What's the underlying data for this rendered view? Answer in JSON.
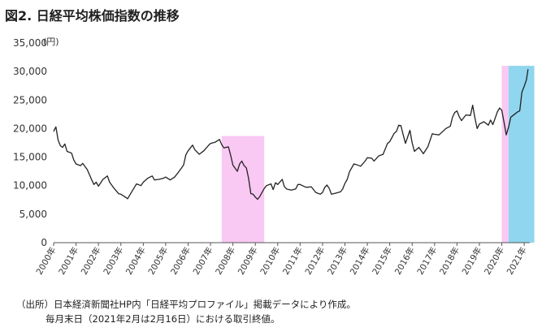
{
  "header": {
    "title": "図2. 日経平均株価指数の推移",
    "unit": "(円)"
  },
  "footer": {
    "line1": "（出所）日本経済新聞社HP内「日経平均プロファイル」掲載データにより作成。",
    "line2": "毎月末日（2021年2月は2月16日）における取引終値。"
  },
  "colors": {
    "line": "#222222",
    "shade_pink": "#f9c8f3",
    "shade_blue": "#8fd6ee",
    "axis": "#555555"
  },
  "chart_data": {
    "type": "line",
    "title": "図2. 日経平均株価指数の推移",
    "ylabel": "(円)",
    "xlabel": "",
    "ylim": [
      0,
      35000
    ],
    "xlim": [
      2000.0,
      2021.25
    ],
    "y_ticks": [
      0,
      5000,
      10000,
      15000,
      20000,
      25000,
      30000,
      35000
    ],
    "y_tick_labels": [
      "0",
      "5,000",
      "10,000",
      "15,000",
      "20,000",
      "25,000",
      "30,000",
      "35,000"
    ],
    "x_tick_labels": [
      "2000年",
      "2001年",
      "2002年",
      "2003年",
      "2004年",
      "2005年",
      "2006年",
      "2007年",
      "2008年",
      "2009年",
      "2010年",
      "2011年",
      "2012年",
      "2013年",
      "2014年",
      "2015年",
      "2016年",
      "2017年",
      "2018年",
      "2019年",
      "2020年",
      "2021年"
    ],
    "grid": false,
    "shaded_periods": [
      {
        "from": 2007.5,
        "to": 2009.4,
        "top": 18700,
        "color": "pink"
      },
      {
        "from": 2020.0,
        "to": 2020.3,
        "top": 31000,
        "color": "pink"
      },
      {
        "from": 2020.3,
        "to": 2021.45,
        "top": 31000,
        "color": "blue"
      }
    ],
    "series": [
      {
        "values": [
          [
            2000.0,
            19500
          ],
          [
            2000.1,
            20300
          ],
          [
            2000.2,
            18000
          ],
          [
            2000.3,
            17000
          ],
          [
            2000.4,
            16700
          ],
          [
            2000.5,
            17300
          ],
          [
            2000.6,
            16000
          ],
          [
            2000.8,
            15700
          ],
          [
            2000.9,
            14500
          ],
          [
            2001.0,
            13800
          ],
          [
            2001.2,
            13500
          ],
          [
            2001.3,
            13900
          ],
          [
            2001.5,
            12800
          ],
          [
            2001.7,
            11000
          ],
          [
            2001.8,
            10200
          ],
          [
            2001.9,
            10600
          ],
          [
            2002.0,
            9900
          ],
          [
            2002.2,
            11100
          ],
          [
            2002.4,
            11700
          ],
          [
            2002.5,
            10600
          ],
          [
            2002.7,
            9500
          ],
          [
            2002.9,
            8600
          ],
          [
            2003.0,
            8500
          ],
          [
            2003.2,
            8000
          ],
          [
            2003.3,
            7700
          ],
          [
            2003.5,
            9000
          ],
          [
            2003.7,
            10300
          ],
          [
            2003.9,
            10000
          ],
          [
            2004.0,
            10600
          ],
          [
            2004.2,
            11300
          ],
          [
            2004.4,
            11700
          ],
          [
            2004.5,
            11000
          ],
          [
            2004.7,
            11100
          ],
          [
            2004.9,
            11300
          ],
          [
            2005.0,
            11500
          ],
          [
            2005.2,
            11000
          ],
          [
            2005.4,
            11500
          ],
          [
            2005.6,
            12500
          ],
          [
            2005.8,
            13600
          ],
          [
            2005.9,
            15400
          ],
          [
            2006.0,
            16100
          ],
          [
            2006.2,
            17100
          ],
          [
            2006.3,
            16300
          ],
          [
            2006.5,
            15500
          ],
          [
            2006.7,
            16100
          ],
          [
            2006.9,
            17000
          ],
          [
            2007.0,
            17400
          ],
          [
            2007.2,
            17600
          ],
          [
            2007.4,
            18100
          ],
          [
            2007.5,
            17200
          ],
          [
            2007.6,
            16600
          ],
          [
            2007.8,
            16800
          ],
          [
            2007.9,
            15300
          ],
          [
            2008.0,
            13600
          ],
          [
            2008.2,
            12500
          ],
          [
            2008.3,
            13800
          ],
          [
            2008.4,
            14300
          ],
          [
            2008.5,
            13500
          ],
          [
            2008.6,
            13100
          ],
          [
            2008.7,
            11300
          ],
          [
            2008.8,
            8600
          ],
          [
            2008.9,
            8500
          ],
          [
            2009.0,
            8000
          ],
          [
            2009.1,
            7600
          ],
          [
            2009.2,
            8100
          ],
          [
            2009.3,
            8800
          ],
          [
            2009.4,
            9500
          ],
          [
            2009.5,
            10000
          ],
          [
            2009.7,
            10300
          ],
          [
            2009.8,
            9300
          ],
          [
            2009.9,
            10500
          ],
          [
            2010.0,
            10200
          ],
          [
            2010.2,
            11100
          ],
          [
            2010.3,
            9800
          ],
          [
            2010.4,
            9400
          ],
          [
            2010.6,
            9200
          ],
          [
            2010.8,
            9400
          ],
          [
            2010.9,
            10200
          ],
          [
            2011.0,
            10200
          ],
          [
            2011.2,
            9800
          ],
          [
            2011.3,
            9700
          ],
          [
            2011.5,
            9800
          ],
          [
            2011.7,
            8800
          ],
          [
            2011.9,
            8500
          ],
          [
            2012.0,
            8800
          ],
          [
            2012.1,
            9700
          ],
          [
            2012.2,
            10100
          ],
          [
            2012.3,
            9500
          ],
          [
            2012.4,
            8500
          ],
          [
            2012.6,
            8700
          ],
          [
            2012.8,
            8900
          ],
          [
            2012.9,
            9400
          ],
          [
            2013.0,
            10400
          ],
          [
            2013.1,
            11100
          ],
          [
            2013.2,
            12400
          ],
          [
            2013.4,
            13800
          ],
          [
            2013.5,
            13700
          ],
          [
            2013.7,
            13400
          ],
          [
            2013.9,
            14300
          ],
          [
            2014.0,
            14900
          ],
          [
            2014.2,
            14800
          ],
          [
            2014.3,
            14300
          ],
          [
            2014.5,
            15200
          ],
          [
            2014.7,
            15500
          ],
          [
            2014.9,
            17400
          ],
          [
            2015.0,
            17700
          ],
          [
            2015.2,
            19200
          ],
          [
            2015.3,
            19500
          ],
          [
            2015.4,
            20600
          ],
          [
            2015.5,
            20500
          ],
          [
            2015.6,
            18900
          ],
          [
            2015.7,
            17400
          ],
          [
            2015.9,
            19700
          ],
          [
            2016.0,
            17500
          ],
          [
            2016.1,
            16000
          ],
          [
            2016.3,
            16700
          ],
          [
            2016.5,
            15600
          ],
          [
            2016.7,
            16800
          ],
          [
            2016.9,
            19100
          ],
          [
            2017.0,
            19000
          ],
          [
            2017.2,
            18900
          ],
          [
            2017.4,
            19600
          ],
          [
            2017.5,
            20000
          ],
          [
            2017.7,
            20400
          ],
          [
            2017.8,
            22000
          ],
          [
            2017.9,
            22800
          ],
          [
            2018.0,
            23100
          ],
          [
            2018.1,
            22100
          ],
          [
            2018.2,
            21400
          ],
          [
            2018.4,
            22400
          ],
          [
            2018.6,
            22300
          ],
          [
            2018.7,
            24100
          ],
          [
            2018.8,
            21900
          ],
          [
            2018.9,
            20000
          ],
          [
            2019.0,
            20800
          ],
          [
            2019.2,
            21200
          ],
          [
            2019.4,
            20600
          ],
          [
            2019.5,
            21500
          ],
          [
            2019.6,
            20700
          ],
          [
            2019.7,
            21800
          ],
          [
            2019.8,
            22900
          ],
          [
            2019.9,
            23600
          ],
          [
            2020.0,
            23200
          ],
          [
            2020.1,
            21100
          ],
          [
            2020.2,
            18900
          ],
          [
            2020.3,
            20200
          ],
          [
            2020.4,
            22000
          ],
          [
            2020.5,
            22300
          ],
          [
            2020.7,
            22900
          ],
          [
            2020.8,
            23100
          ],
          [
            2020.9,
            26400
          ],
          [
            2021.0,
            27400
          ],
          [
            2021.1,
            28600
          ],
          [
            2021.17,
            30400
          ]
        ]
      }
    ]
  }
}
